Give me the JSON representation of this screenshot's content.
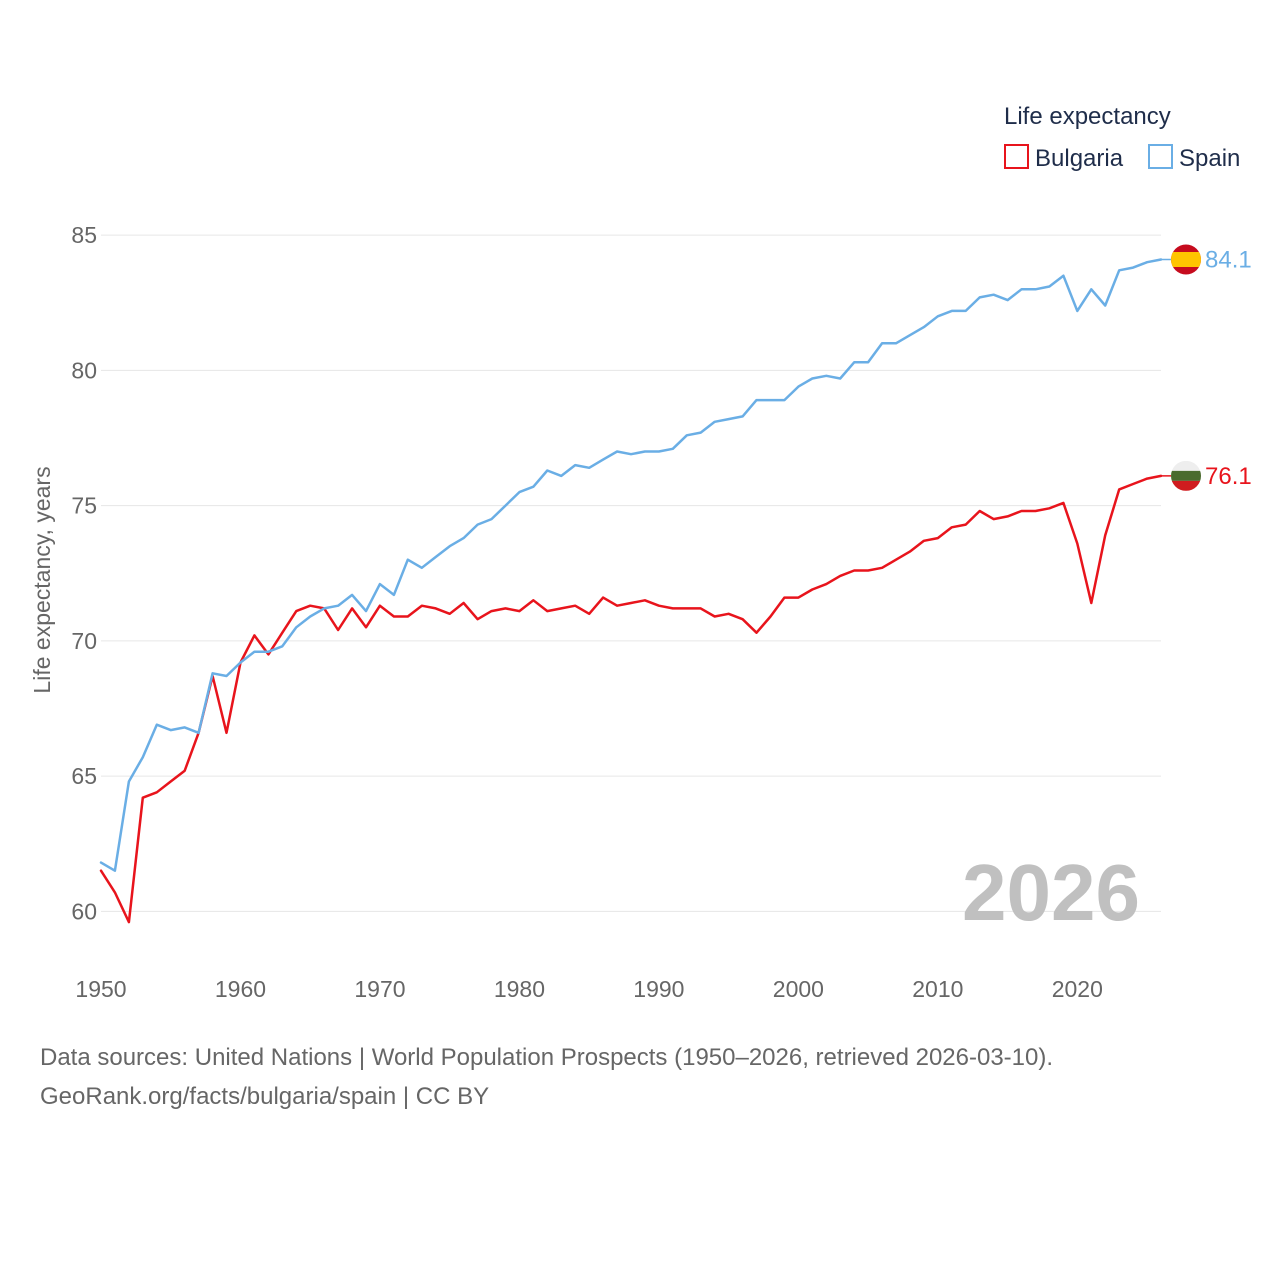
{
  "chart_data": {
    "type": "line",
    "title": "",
    "ylabel": "Life expectancy, years",
    "xlabel": "",
    "xlim": [
      1950,
      2026
    ],
    "ylim": [
      58.2,
      86.3
    ],
    "y_ticks": [
      60,
      65,
      70,
      75,
      80,
      85
    ],
    "x_ticks": [
      1950,
      1960,
      1970,
      1980,
      1990,
      2000,
      2010,
      2020
    ],
    "year_display": "2026",
    "legend": {
      "title": "Life expectancy",
      "position": "top-right",
      "entries": [
        "Bulgaria",
        "Spain"
      ]
    },
    "x": [
      1950,
      1951,
      1952,
      1953,
      1954,
      1955,
      1956,
      1957,
      1958,
      1959,
      1960,
      1961,
      1962,
      1963,
      1964,
      1965,
      1966,
      1967,
      1968,
      1969,
      1970,
      1971,
      1972,
      1973,
      1974,
      1975,
      1976,
      1977,
      1978,
      1979,
      1980,
      1981,
      1982,
      1983,
      1984,
      1985,
      1986,
      1987,
      1988,
      1989,
      1990,
      1991,
      1992,
      1993,
      1994,
      1995,
      1996,
      1997,
      1998,
      1999,
      2000,
      2001,
      2002,
      2003,
      2004,
      2005,
      2006,
      2007,
      2008,
      2009,
      2010,
      2011,
      2012,
      2013,
      2014,
      2015,
      2016,
      2017,
      2018,
      2019,
      2020,
      2021,
      2022,
      2023,
      2024,
      2025,
      2026
    ],
    "series": [
      {
        "name": "Bulgaria",
        "color": "#e8141c",
        "end_label": "76.1",
        "flag": "bulgaria-flag",
        "values": [
          61.5,
          60.7,
          59.6,
          64.2,
          64.4,
          64.8,
          65.2,
          66.6,
          68.7,
          66.6,
          69.2,
          70.2,
          69.5,
          70.3,
          71.1,
          71.3,
          71.2,
          70.4,
          71.2,
          70.5,
          71.3,
          70.9,
          70.9,
          71.3,
          71.2,
          71.0,
          71.4,
          70.8,
          71.1,
          71.2,
          71.1,
          71.5,
          71.1,
          71.2,
          71.3,
          71.0,
          71.6,
          71.3,
          71.4,
          71.5,
          71.3,
          71.2,
          71.2,
          71.2,
          70.9,
          71.0,
          70.8,
          70.3,
          70.9,
          71.6,
          71.6,
          71.9,
          72.1,
          72.4,
          72.6,
          72.6,
          72.7,
          73.0,
          73.3,
          73.7,
          73.8,
          74.2,
          74.3,
          74.8,
          74.5,
          74.6,
          74.8,
          74.8,
          74.9,
          75.1,
          73.6,
          71.4,
          73.9,
          75.6,
          75.8,
          76.0,
          76.1
        ]
      },
      {
        "name": "Spain",
        "color": "#6aaee5",
        "end_label": "84.1",
        "flag": "spain-flag",
        "values": [
          61.8,
          61.5,
          64.8,
          65.7,
          66.9,
          66.7,
          66.8,
          66.6,
          68.8,
          68.7,
          69.2,
          69.6,
          69.6,
          69.8,
          70.5,
          70.9,
          71.2,
          71.3,
          71.7,
          71.1,
          72.1,
          71.7,
          73.0,
          72.7,
          73.1,
          73.5,
          73.8,
          74.3,
          74.5,
          75.0,
          75.5,
          75.7,
          76.3,
          76.1,
          76.5,
          76.4,
          76.7,
          77.0,
          76.9,
          77.0,
          77.0,
          77.1,
          77.6,
          77.7,
          78.1,
          78.2,
          78.3,
          78.9,
          78.9,
          78.9,
          79.4,
          79.7,
          79.8,
          79.7,
          80.3,
          80.3,
          81.0,
          81.0,
          81.3,
          81.6,
          82.0,
          82.2,
          82.2,
          82.7,
          82.8,
          82.6,
          83.0,
          83.0,
          83.1,
          83.5,
          82.2,
          83.0,
          82.4,
          83.7,
          83.8,
          84.0,
          84.1
        ]
      }
    ]
  },
  "footer": {
    "source_line": "Data sources: United Nations | World Population Prospects (1950–2026, retrieved 2026-03-10).",
    "credit_line": "GeoRank.org/facts/bulgaria/spain | CC BY"
  }
}
